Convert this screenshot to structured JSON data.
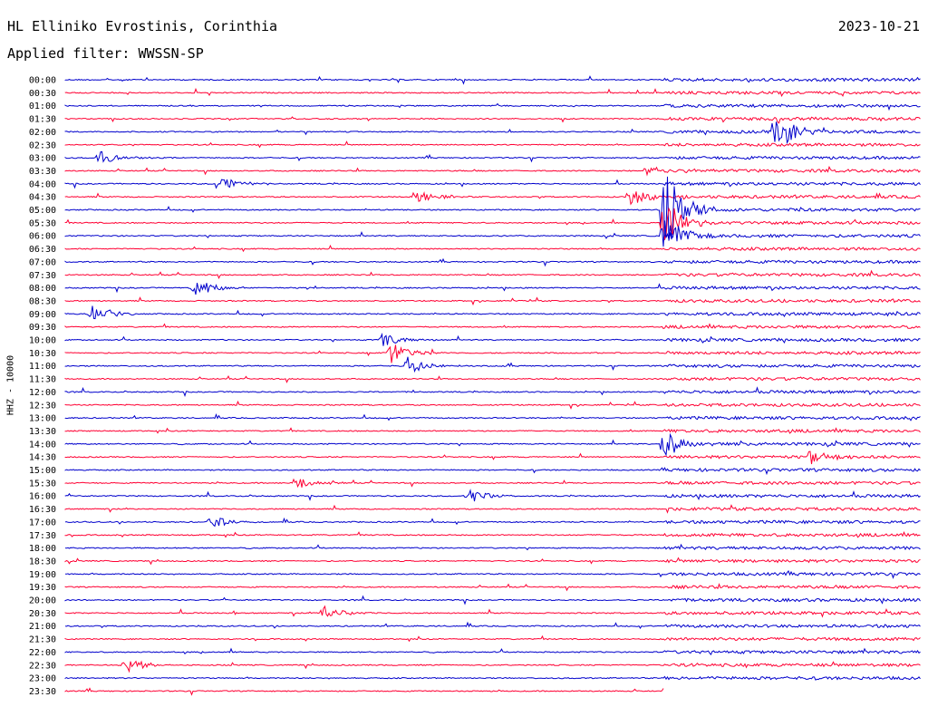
{
  "header": {
    "station": "HL Elliniko Evrostinis, Corinthia",
    "date": "2023-10-21",
    "filter": "Applied filter: WWSSN-SP"
  },
  "chart_data": {
    "type": "line",
    "title": "HL Elliniko Evrostinis, Corinthia",
    "ylabel": "HHZ - 10000",
    "row_labels": [
      "00:00",
      "00:30",
      "01:00",
      "01:30",
      "02:00",
      "02:30",
      "03:00",
      "03:30",
      "04:00",
      "04:30",
      "05:00",
      "05:30",
      "06:00",
      "06:30",
      "07:00",
      "07:30",
      "08:00",
      "08:30",
      "09:00",
      "09:30",
      "10:00",
      "10:30",
      "11:00",
      "11:30",
      "12:00",
      "12:30",
      "13:00",
      "13:30",
      "14:00",
      "14:30",
      "15:00",
      "15:30",
      "16:00",
      "16:30",
      "17:00",
      "17:30",
      "18:00",
      "18:30",
      "19:00",
      "19:30",
      "20:00",
      "20:30",
      "21:00",
      "21:30",
      "22:00",
      "22:30",
      "23:00",
      "23:30"
    ],
    "row_minutes": 30,
    "trace_colors": [
      "#0000cc",
      "#ff0033"
    ],
    "data_gap": {
      "start_fraction": 0.0,
      "end_fraction": 0.07,
      "note_rows": "gap near end of 00:00-00:30 only at last row"
    },
    "last_row_end_fraction": 0.7,
    "events": [
      {
        "row": 3,
        "pos": 0.83,
        "amp": 3
      },
      {
        "row": 4,
        "pos": 0.83,
        "amp": 28
      },
      {
        "row": 6,
        "pos": 0.04,
        "amp": 8
      },
      {
        "row": 7,
        "pos": 0.68,
        "amp": 8
      },
      {
        "row": 8,
        "pos": 0.18,
        "amp": 10
      },
      {
        "row": 9,
        "pos": 0.41,
        "amp": 8
      },
      {
        "row": 9,
        "pos": 0.66,
        "amp": 12
      },
      {
        "row": 10,
        "pos": 0.7,
        "amp": 50
      },
      {
        "row": 11,
        "pos": 0.7,
        "amp": 30
      },
      {
        "row": 12,
        "pos": 0.7,
        "amp": 25
      },
      {
        "row": 16,
        "pos": 0.15,
        "amp": 14
      },
      {
        "row": 18,
        "pos": 0.03,
        "amp": 10
      },
      {
        "row": 20,
        "pos": 0.37,
        "amp": 9
      },
      {
        "row": 21,
        "pos": 0.38,
        "amp": 14
      },
      {
        "row": 22,
        "pos": 0.4,
        "amp": 10
      },
      {
        "row": 28,
        "pos": 0.7,
        "amp": 16
      },
      {
        "row": 29,
        "pos": 0.87,
        "amp": 12
      },
      {
        "row": 31,
        "pos": 0.27,
        "amp": 8
      },
      {
        "row": 32,
        "pos": 0.47,
        "amp": 10
      },
      {
        "row": 34,
        "pos": 0.17,
        "amp": 8
      },
      {
        "row": 41,
        "pos": 0.3,
        "amp": 9
      },
      {
        "row": 45,
        "pos": 0.07,
        "amp": 9
      }
    ]
  }
}
